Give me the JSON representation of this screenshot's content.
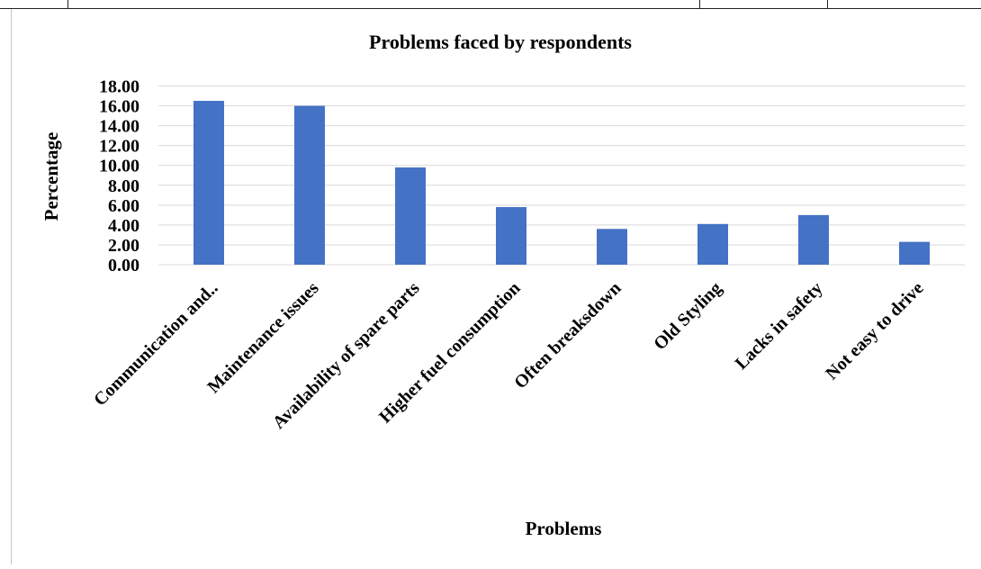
{
  "chart_data": {
    "type": "bar",
    "title": "Problems faced by respondents",
    "xlabel": "Problems",
    "ylabel": "Percentage",
    "categories": [
      "Communication and..",
      "Maintenance issues",
      "Availability of spare parts",
      "Higher fuel consumption",
      "Often breaksdown",
      "Old Styling",
      "Lacks in safety",
      "Not easy to drive"
    ],
    "values": [
      16.5,
      16.0,
      9.8,
      5.8,
      3.6,
      4.1,
      5.0,
      2.3
    ],
    "ylim": [
      0,
      18
    ],
    "yticks": [
      "0.00",
      "2.00",
      "4.00",
      "6.00",
      "8.00",
      "10.00",
      "12.00",
      "14.00",
      "16.00",
      "18.00"
    ],
    "grid": true,
    "bar_color": "#4472c4",
    "grid_color": "#d9d9d9"
  }
}
